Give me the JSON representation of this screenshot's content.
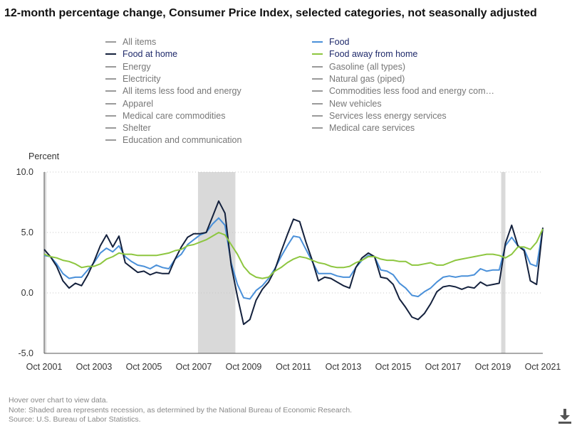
{
  "title": "12-month percentage change, Consumer Price Index, selected categories, not seasonally adjusted",
  "legend": [
    {
      "label": "All items",
      "color": "#9a9a9a",
      "active": false
    },
    {
      "label": "Food",
      "color": "#4a90d9",
      "active": true
    },
    {
      "label": "Food at home",
      "color": "#14213d",
      "active": true
    },
    {
      "label": "Food away from home",
      "color": "#8dc63f",
      "active": true
    },
    {
      "label": "Energy",
      "color": "#9a9a9a",
      "active": false
    },
    {
      "label": "Gasoline (all types)",
      "color": "#9a9a9a",
      "active": false
    },
    {
      "label": "Electricity",
      "color": "#9a9a9a",
      "active": false
    },
    {
      "label": "Natural gas (piped)",
      "color": "#9a9a9a",
      "active": false
    },
    {
      "label": "All items less food and energy",
      "color": "#9a9a9a",
      "active": false
    },
    {
      "label": "Commodities less food and energy com…",
      "color": "#9a9a9a",
      "active": false
    },
    {
      "label": "Apparel",
      "color": "#9a9a9a",
      "active": false
    },
    {
      "label": "New vehicles",
      "color": "#9a9a9a",
      "active": false
    },
    {
      "label": "Medical care commodities",
      "color": "#9a9a9a",
      "active": false
    },
    {
      "label": "Services less energy services",
      "color": "#9a9a9a",
      "active": false
    },
    {
      "label": "Shelter",
      "color": "#9a9a9a",
      "active": false
    },
    {
      "label": "Medical care services",
      "color": "#9a9a9a",
      "active": false
    },
    {
      "label": "Education and communication",
      "color": "#9a9a9a",
      "active": false
    }
  ],
  "notes": [
    "Hover over chart to view data.",
    "Note: Shaded area represents recession, as determined by the National Bureau of Economic Research.",
    "Source: U.S. Bureau of Labor Statistics."
  ],
  "download_icon": "download-icon",
  "chart_data": {
    "type": "line",
    "ylabel": "Percent",
    "ylim": [
      -5.0,
      10.0
    ],
    "yticks": [
      -5.0,
      0.0,
      5.0,
      10.0
    ],
    "xlim": [
      2001.75,
      2021.75
    ],
    "xticks": [
      {
        "value": 2001.75,
        "label": "Oct 2001"
      },
      {
        "value": 2003.75,
        "label": "Oct 2003"
      },
      {
        "value": 2005.75,
        "label": "Oct 2005"
      },
      {
        "value": 2007.75,
        "label": "Oct 2007"
      },
      {
        "value": 2009.75,
        "label": "Oct 2009"
      },
      {
        "value": 2011.75,
        "label": "Oct 2011"
      },
      {
        "value": 2013.75,
        "label": "Oct 2013"
      },
      {
        "value": 2015.75,
        "label": "Oct 2015"
      },
      {
        "value": 2017.75,
        "label": "Oct 2017"
      },
      {
        "value": 2019.75,
        "label": "Oct 2019"
      },
      {
        "value": 2021.75,
        "label": "Oct 2021"
      }
    ],
    "grid": "horizontal dotted",
    "recessions": [
      [
        2001.75,
        2001.84
      ],
      [
        2007.92,
        2009.42
      ],
      [
        2020.08,
        2020.25
      ]
    ],
    "series": [
      {
        "name": "Food",
        "color": "#4a90d9",
        "points": [
          [
            2001.75,
            3.1
          ],
          [
            2002.0,
            3.0
          ],
          [
            2002.25,
            2.4
          ],
          [
            2002.5,
            1.6
          ],
          [
            2002.75,
            1.2
          ],
          [
            2003.0,
            1.3
          ],
          [
            2003.25,
            1.3
          ],
          [
            2003.5,
            1.9
          ],
          [
            2003.75,
            2.5
          ],
          [
            2004.0,
            3.3
          ],
          [
            2004.25,
            3.7
          ],
          [
            2004.5,
            3.4
          ],
          [
            2004.75,
            3.9
          ],
          [
            2005.0,
            3.0
          ],
          [
            2005.25,
            2.6
          ],
          [
            2005.5,
            2.3
          ],
          [
            2005.75,
            2.2
          ],
          [
            2006.0,
            2.0
          ],
          [
            2006.25,
            2.3
          ],
          [
            2006.5,
            2.1
          ],
          [
            2006.75,
            2.0
          ],
          [
            2007.0,
            2.8
          ],
          [
            2007.25,
            3.2
          ],
          [
            2007.5,
            4.0
          ],
          [
            2007.75,
            4.4
          ],
          [
            2008.0,
            4.8
          ],
          [
            2008.25,
            5.0
          ],
          [
            2008.5,
            5.7
          ],
          [
            2008.75,
            6.2
          ],
          [
            2009.0,
            5.6
          ],
          [
            2009.25,
            2.5
          ],
          [
            2009.5,
            0.7
          ],
          [
            2009.75,
            -0.4
          ],
          [
            2010.0,
            -0.5
          ],
          [
            2010.25,
            0.2
          ],
          [
            2010.5,
            0.6
          ],
          [
            2010.75,
            1.2
          ],
          [
            2011.0,
            2.0
          ],
          [
            2011.25,
            3.0
          ],
          [
            2011.5,
            3.9
          ],
          [
            2011.75,
            4.7
          ],
          [
            2012.0,
            4.6
          ],
          [
            2012.25,
            3.6
          ],
          [
            2012.5,
            2.6
          ],
          [
            2012.75,
            1.6
          ],
          [
            2013.0,
            1.6
          ],
          [
            2013.25,
            1.6
          ],
          [
            2013.5,
            1.4
          ],
          [
            2013.75,
            1.3
          ],
          [
            2014.0,
            1.3
          ],
          [
            2014.25,
            2.1
          ],
          [
            2014.5,
            2.7
          ],
          [
            2014.75,
            3.1
          ],
          [
            2015.0,
            3.0
          ],
          [
            2015.25,
            1.9
          ],
          [
            2015.5,
            1.8
          ],
          [
            2015.75,
            1.5
          ],
          [
            2016.0,
            0.8
          ],
          [
            2016.25,
            0.4
          ],
          [
            2016.5,
            -0.2
          ],
          [
            2016.75,
            -0.3
          ],
          [
            2017.0,
            0.1
          ],
          [
            2017.25,
            0.4
          ],
          [
            2017.5,
            0.9
          ],
          [
            2017.75,
            1.3
          ],
          [
            2018.0,
            1.4
          ],
          [
            2018.25,
            1.3
          ],
          [
            2018.5,
            1.4
          ],
          [
            2018.75,
            1.4
          ],
          [
            2019.0,
            1.5
          ],
          [
            2019.25,
            2.0
          ],
          [
            2019.5,
            1.8
          ],
          [
            2019.75,
            1.9
          ],
          [
            2020.0,
            1.9
          ],
          [
            2020.25,
            3.9
          ],
          [
            2020.5,
            4.6
          ],
          [
            2020.75,
            3.9
          ],
          [
            2021.0,
            3.6
          ],
          [
            2021.25,
            2.4
          ],
          [
            2021.5,
            2.2
          ],
          [
            2021.75,
            5.3
          ]
        ]
      },
      {
        "name": "Food at home",
        "color": "#14213d",
        "points": [
          [
            2001.75,
            3.6
          ],
          [
            2002.0,
            3.0
          ],
          [
            2002.25,
            2.2
          ],
          [
            2002.5,
            1.0
          ],
          [
            2002.75,
            0.4
          ],
          [
            2003.0,
            0.8
          ],
          [
            2003.25,
            0.6
          ],
          [
            2003.5,
            1.5
          ],
          [
            2003.75,
            2.6
          ],
          [
            2004.0,
            3.9
          ],
          [
            2004.25,
            4.8
          ],
          [
            2004.5,
            3.8
          ],
          [
            2004.75,
            4.7
          ],
          [
            2005.0,
            2.5
          ],
          [
            2005.25,
            2.1
          ],
          [
            2005.5,
            1.7
          ],
          [
            2005.75,
            1.8
          ],
          [
            2006.0,
            1.5
          ],
          [
            2006.25,
            1.7
          ],
          [
            2006.5,
            1.6
          ],
          [
            2006.75,
            1.6
          ],
          [
            2007.0,
            2.8
          ],
          [
            2007.25,
            3.8
          ],
          [
            2007.5,
            4.6
          ],
          [
            2007.75,
            4.9
          ],
          [
            2008.0,
            4.9
          ],
          [
            2008.25,
            5.0
          ],
          [
            2008.5,
            6.3
          ],
          [
            2008.75,
            7.6
          ],
          [
            2009.0,
            6.6
          ],
          [
            2009.25,
            2.3
          ],
          [
            2009.5,
            -0.3
          ],
          [
            2009.75,
            -2.6
          ],
          [
            2010.0,
            -2.2
          ],
          [
            2010.25,
            -0.6
          ],
          [
            2010.5,
            0.3
          ],
          [
            2010.75,
            0.9
          ],
          [
            2011.0,
            1.9
          ],
          [
            2011.25,
            3.4
          ],
          [
            2011.5,
            4.8
          ],
          [
            2011.75,
            6.1
          ],
          [
            2012.0,
            5.9
          ],
          [
            2012.25,
            4.2
          ],
          [
            2012.5,
            2.7
          ],
          [
            2012.75,
            1.0
          ],
          [
            2013.0,
            1.3
          ],
          [
            2013.25,
            1.2
          ],
          [
            2013.5,
            0.9
          ],
          [
            2013.75,
            0.6
          ],
          [
            2014.0,
            0.4
          ],
          [
            2014.25,
            2.1
          ],
          [
            2014.5,
            2.9
          ],
          [
            2014.75,
            3.3
          ],
          [
            2015.0,
            3.0
          ],
          [
            2015.25,
            1.3
          ],
          [
            2015.5,
            1.2
          ],
          [
            2015.75,
            0.7
          ],
          [
            2016.0,
            -0.5
          ],
          [
            2016.25,
            -1.2
          ],
          [
            2016.5,
            -2.0
          ],
          [
            2016.75,
            -2.2
          ],
          [
            2017.0,
            -1.7
          ],
          [
            2017.25,
            -0.9
          ],
          [
            2017.5,
            0.1
          ],
          [
            2017.75,
            0.5
          ],
          [
            2018.0,
            0.6
          ],
          [
            2018.25,
            0.5
          ],
          [
            2018.5,
            0.3
          ],
          [
            2018.75,
            0.5
          ],
          [
            2019.0,
            0.4
          ],
          [
            2019.25,
            0.9
          ],
          [
            2019.5,
            0.6
          ],
          [
            2019.75,
            0.7
          ],
          [
            2020.0,
            0.8
          ],
          [
            2020.25,
            4.1
          ],
          [
            2020.5,
            5.6
          ],
          [
            2020.75,
            3.9
          ],
          [
            2021.0,
            3.5
          ],
          [
            2021.25,
            1.0
          ],
          [
            2021.5,
            0.7
          ],
          [
            2021.75,
            5.4
          ]
        ]
      },
      {
        "name": "Food away from home",
        "color": "#8dc63f",
        "points": [
          [
            2001.75,
            3.2
          ],
          [
            2002.0,
            3.0
          ],
          [
            2002.25,
            2.9
          ],
          [
            2002.5,
            2.7
          ],
          [
            2002.75,
            2.6
          ],
          [
            2003.0,
            2.4
          ],
          [
            2003.25,
            2.1
          ],
          [
            2003.5,
            2.2
          ],
          [
            2003.75,
            2.2
          ],
          [
            2004.0,
            2.4
          ],
          [
            2004.25,
            2.8
          ],
          [
            2004.5,
            3.0
          ],
          [
            2004.75,
            3.3
          ],
          [
            2005.0,
            3.2
          ],
          [
            2005.25,
            3.2
          ],
          [
            2005.5,
            3.1
          ],
          [
            2005.75,
            3.1
          ],
          [
            2006.0,
            3.1
          ],
          [
            2006.25,
            3.1
          ],
          [
            2006.5,
            3.2
          ],
          [
            2006.75,
            3.3
          ],
          [
            2007.0,
            3.5
          ],
          [
            2007.25,
            3.6
          ],
          [
            2007.5,
            3.9
          ],
          [
            2007.75,
            4.0
          ],
          [
            2008.0,
            4.2
          ],
          [
            2008.25,
            4.4
          ],
          [
            2008.5,
            4.7
          ],
          [
            2008.75,
            5.0
          ],
          [
            2009.0,
            4.8
          ],
          [
            2009.25,
            4.0
          ],
          [
            2009.5,
            3.2
          ],
          [
            2009.75,
            2.2
          ],
          [
            2010.0,
            1.6
          ],
          [
            2010.25,
            1.3
          ],
          [
            2010.5,
            1.2
          ],
          [
            2010.75,
            1.3
          ],
          [
            2011.0,
            1.8
          ],
          [
            2011.25,
            2.1
          ],
          [
            2011.5,
            2.5
          ],
          [
            2011.75,
            2.8
          ],
          [
            2012.0,
            3.0
          ],
          [
            2012.25,
            2.9
          ],
          [
            2012.5,
            2.7
          ],
          [
            2012.75,
            2.5
          ],
          [
            2013.0,
            2.4
          ],
          [
            2013.25,
            2.2
          ],
          [
            2013.5,
            2.1
          ],
          [
            2013.75,
            2.1
          ],
          [
            2014.0,
            2.2
          ],
          [
            2014.25,
            2.5
          ],
          [
            2014.5,
            2.7
          ],
          [
            2014.75,
            3.0
          ],
          [
            2015.0,
            3.0
          ],
          [
            2015.25,
            2.8
          ],
          [
            2015.5,
            2.7
          ],
          [
            2015.75,
            2.7
          ],
          [
            2016.0,
            2.6
          ],
          [
            2016.25,
            2.6
          ],
          [
            2016.5,
            2.3
          ],
          [
            2016.75,
            2.3
          ],
          [
            2017.0,
            2.4
          ],
          [
            2017.25,
            2.5
          ],
          [
            2017.5,
            2.3
          ],
          [
            2017.75,
            2.3
          ],
          [
            2018.0,
            2.5
          ],
          [
            2018.25,
            2.7
          ],
          [
            2018.5,
            2.8
          ],
          [
            2018.75,
            2.9
          ],
          [
            2019.0,
            3.0
          ],
          [
            2019.25,
            3.1
          ],
          [
            2019.5,
            3.2
          ],
          [
            2019.75,
            3.2
          ],
          [
            2020.0,
            3.1
          ],
          [
            2020.25,
            2.9
          ],
          [
            2020.5,
            3.2
          ],
          [
            2020.75,
            3.8
          ],
          [
            2021.0,
            3.8
          ],
          [
            2021.25,
            3.6
          ],
          [
            2021.5,
            4.2
          ],
          [
            2021.75,
            5.3
          ]
        ]
      }
    ]
  }
}
